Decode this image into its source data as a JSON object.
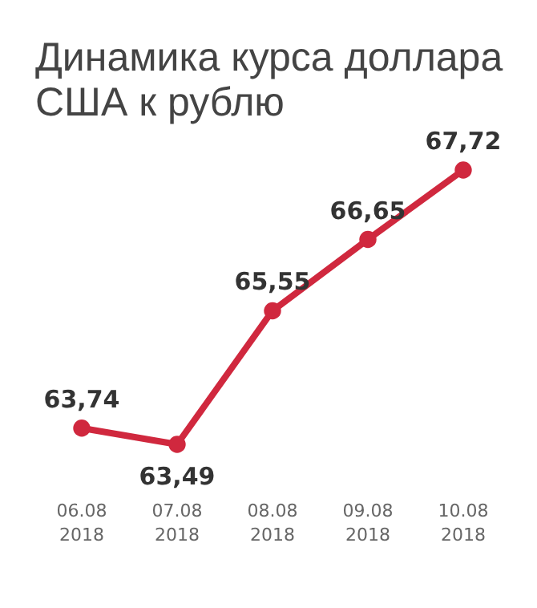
{
  "chart_data": {
    "type": "line",
    "title": "Динамика курса доллара США к рублю",
    "categories": [
      "06.08 2018",
      "07.08 2018",
      "08.08 2018",
      "09.08 2018",
      "10.08 2018"
    ],
    "series": [
      {
        "color": "#d0283e",
        "values": [
          63.74,
          63.49,
          65.55,
          66.65,
          67.72
        ],
        "value_labels": [
          "63,74",
          "63,49",
          "65,55",
          "66,65",
          "67,72"
        ]
      }
    ],
    "marker": "circle",
    "grid": false,
    "line_style": "solid"
  }
}
